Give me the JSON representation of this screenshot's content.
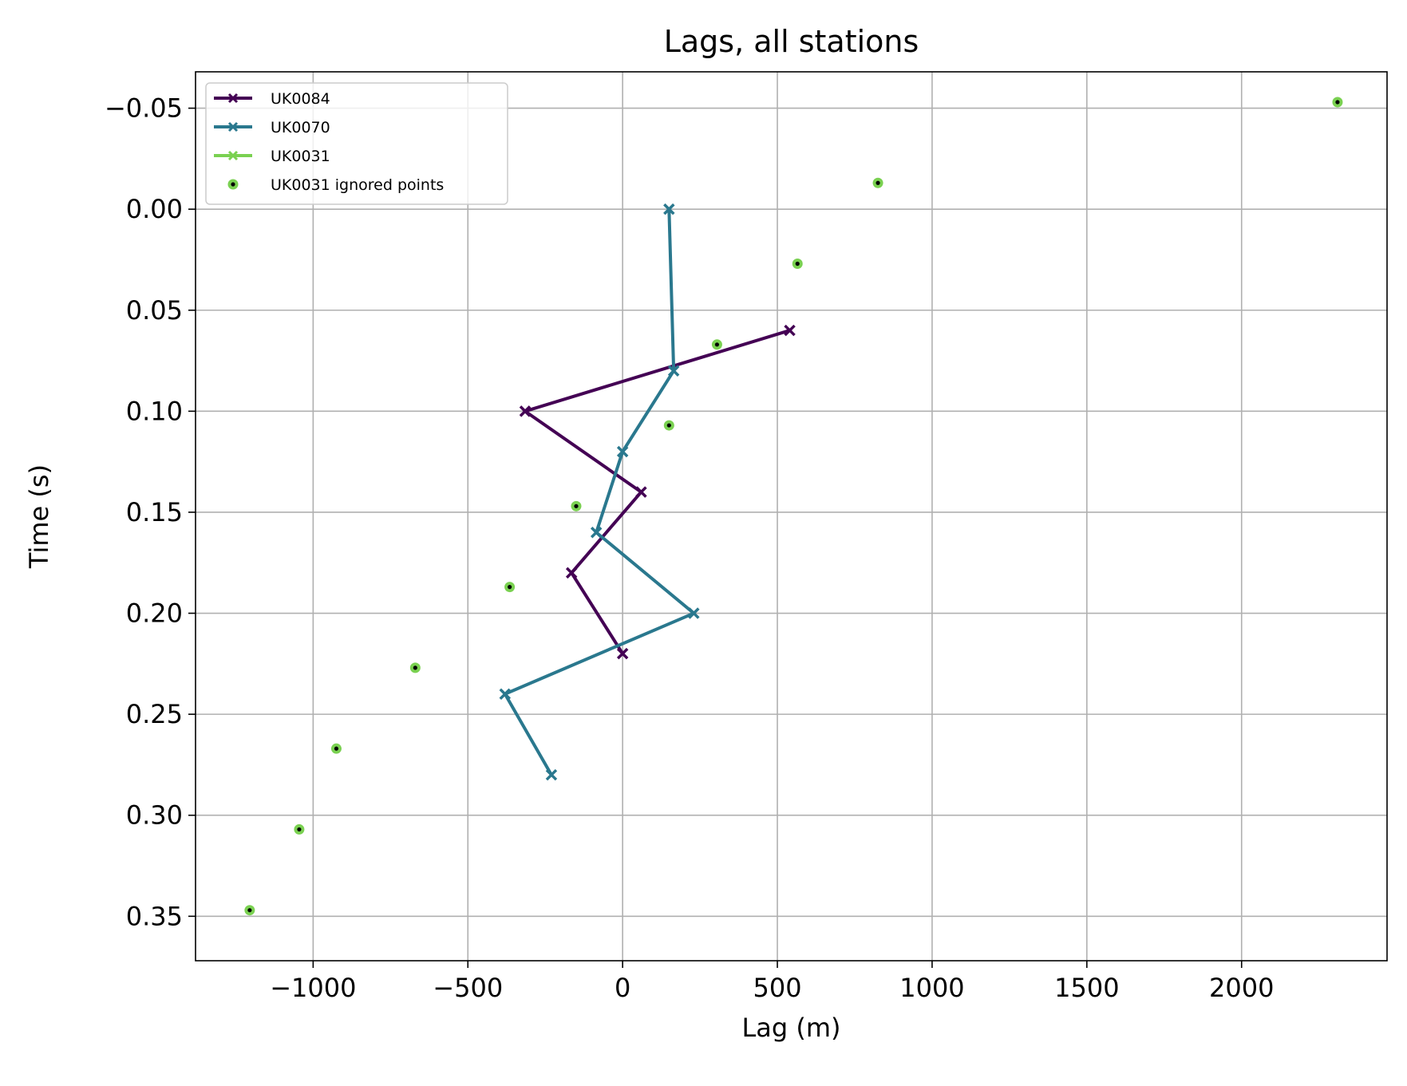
{
  "chart_data": {
    "type": "line",
    "title": "Lags, all stations",
    "xlabel": "Lag (m)",
    "ylabel": "Time (s)",
    "xlim": [
      -1380,
      2470
    ],
    "ylim": [
      -0.068,
      0.372
    ],
    "y_inverted": true,
    "grid": true,
    "legend_position": "top-left",
    "xticks": [
      -1000,
      -500,
      0,
      500,
      1000,
      1500,
      2000
    ],
    "xtick_labels": [
      "−1000",
      "−500",
      "0",
      "500",
      "1000",
      "1500",
      "2000"
    ],
    "yticks": [
      -0.05,
      0.0,
      0.05,
      0.1,
      0.15,
      0.2,
      0.25,
      0.3,
      0.35
    ],
    "ytick_labels": [
      "−0.05",
      "0.00",
      "0.05",
      "0.10",
      "0.15",
      "0.20",
      "0.25",
      "0.30",
      "0.35"
    ],
    "series": [
      {
        "name": "UK0084",
        "kind": "line",
        "marker": "x",
        "color": "#440154",
        "points": [
          [
            540,
            0.06
          ],
          [
            -315,
            0.1
          ],
          [
            60,
            0.14
          ],
          [
            -165,
            0.18
          ],
          [
            0,
            0.22
          ]
        ]
      },
      {
        "name": "UK0070",
        "kind": "line",
        "marker": "x",
        "color": "#2a788e",
        "points": [
          [
            150,
            0.0
          ],
          [
            165,
            0.08
          ],
          [
            0,
            0.12
          ],
          [
            -85,
            0.16
          ],
          [
            230,
            0.2
          ],
          [
            -380,
            0.24
          ],
          [
            -230,
            0.28
          ]
        ]
      },
      {
        "name": "UK0031",
        "kind": "line",
        "marker": "x",
        "color": "#7ad151",
        "points": []
      },
      {
        "name": "UK0031 ignored points",
        "kind": "scatter",
        "marker": "dot",
        "color": "#7ad151",
        "edge_color": "#000000",
        "points": [
          [
            2310,
            -0.053
          ],
          [
            825,
            -0.013
          ],
          [
            565,
            0.027
          ],
          [
            305,
            0.067
          ],
          [
            150,
            0.107
          ],
          [
            -150,
            0.147
          ],
          [
            -365,
            0.187
          ],
          [
            -670,
            0.227
          ],
          [
            -925,
            0.267
          ],
          [
            -1045,
            0.307
          ],
          [
            -1205,
            0.347
          ]
        ]
      }
    ]
  }
}
